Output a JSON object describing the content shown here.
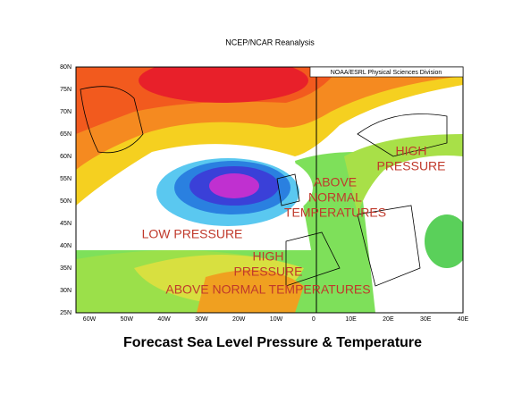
{
  "header": {
    "title": "NCEP/NCAR Reanalysis",
    "credit": "NOAA/ESRL Physical Sciences Division"
  },
  "map": {
    "lat_labels": [
      "80N",
      "75N",
      "70N",
      "65N",
      "60N",
      "55N",
      "50N",
      "45N",
      "40N",
      "35N",
      "30N",
      "25N"
    ],
    "lon_labels": [
      "60W",
      "50W",
      "40W",
      "30W",
      "20W",
      "10W",
      "0",
      "10E",
      "20E",
      "30E",
      "40E"
    ],
    "annotations": [
      {
        "lines": [
          "LOW PRESSURE"
        ],
        "color": "#2a6fd6"
      },
      {
        "lines": [
          "HIGH",
          "PRESSURE"
        ],
        "color": "#c0392b"
      },
      {
        "lines": [
          "ABOVE NORMAL TEMPERATURES"
        ],
        "color": "#c0392b"
      },
      {
        "lines": [
          "HIGH",
          "PRESSURE"
        ],
        "color": "#c0392b"
      },
      {
        "lines": [
          "ABOVE",
          "NORMAL",
          "TEMPERATURES"
        ],
        "color": "#c0392b"
      }
    ]
  },
  "caption": "Forecast Sea Level Pressure & Temperature"
}
